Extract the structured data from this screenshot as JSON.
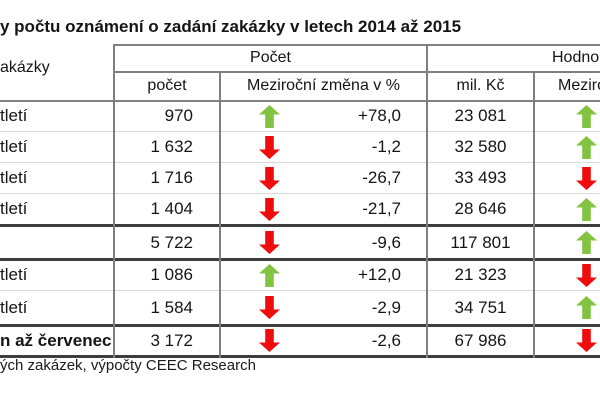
{
  "title": "y počtu oznámení o zadání zakázky v letech 2014 až 2015",
  "footer": "ých zakázek, výpočty CEEC Research",
  "colors": {
    "green": "#82c341",
    "red": "#ee0c0c"
  },
  "table": {
    "row_header_fragment": "akázky",
    "group_headers": {
      "pocet": "Počet",
      "hodnota_fragment": "Hodno"
    },
    "col_headers": {
      "pocet": "počet",
      "zmena": "Meziroční změna v %",
      "mil_kc": "mil. Kč",
      "zmena_hodnota_fragment": "Meziro"
    },
    "rows": [
      {
        "label": "tletí",
        "bold": false,
        "summary": false,
        "pocet": "970",
        "pocet_dir": "up",
        "zmena": "+78,0",
        "mil_kc": "23 081",
        "hodnota_dir": "up"
      },
      {
        "label": "tletí",
        "bold": false,
        "summary": false,
        "pocet": "1 632",
        "pocet_dir": "down",
        "zmena": "-1,2",
        "mil_kc": "32 580",
        "hodnota_dir": "up"
      },
      {
        "label": "tletí",
        "bold": false,
        "summary": false,
        "pocet": "1 716",
        "pocet_dir": "down",
        "zmena": "-26,7",
        "mil_kc": "33 493",
        "hodnota_dir": "down"
      },
      {
        "label": "tletí",
        "bold": false,
        "summary": false,
        "pocet": "1 404",
        "pocet_dir": "down",
        "zmena": "-21,7",
        "mil_kc": "28 646",
        "hodnota_dir": "up"
      },
      {
        "label": "",
        "bold": false,
        "summary": true,
        "pocet": "5 722",
        "pocet_dir": "down",
        "zmena": "-9,6",
        "mil_kc": "117 801",
        "hodnota_dir": "up"
      },
      {
        "label": "tletí",
        "bold": false,
        "summary": false,
        "pocet": "1 086",
        "pocet_dir": "up",
        "zmena": "+12,0",
        "mil_kc": "21 323",
        "hodnota_dir": "down"
      },
      {
        "label": "tletí",
        "bold": false,
        "summary": false,
        "pocet": "1 584",
        "pocet_dir": "down",
        "zmena": "-2,9",
        "mil_kc": "34 751",
        "hodnota_dir": "up"
      },
      {
        "label": "n až červenec",
        "bold": true,
        "summary": false,
        "pocet": "3 172",
        "pocet_dir": "down",
        "zmena": "-2,6",
        "mil_kc": "67 986",
        "hodnota_dir": "down"
      }
    ]
  }
}
